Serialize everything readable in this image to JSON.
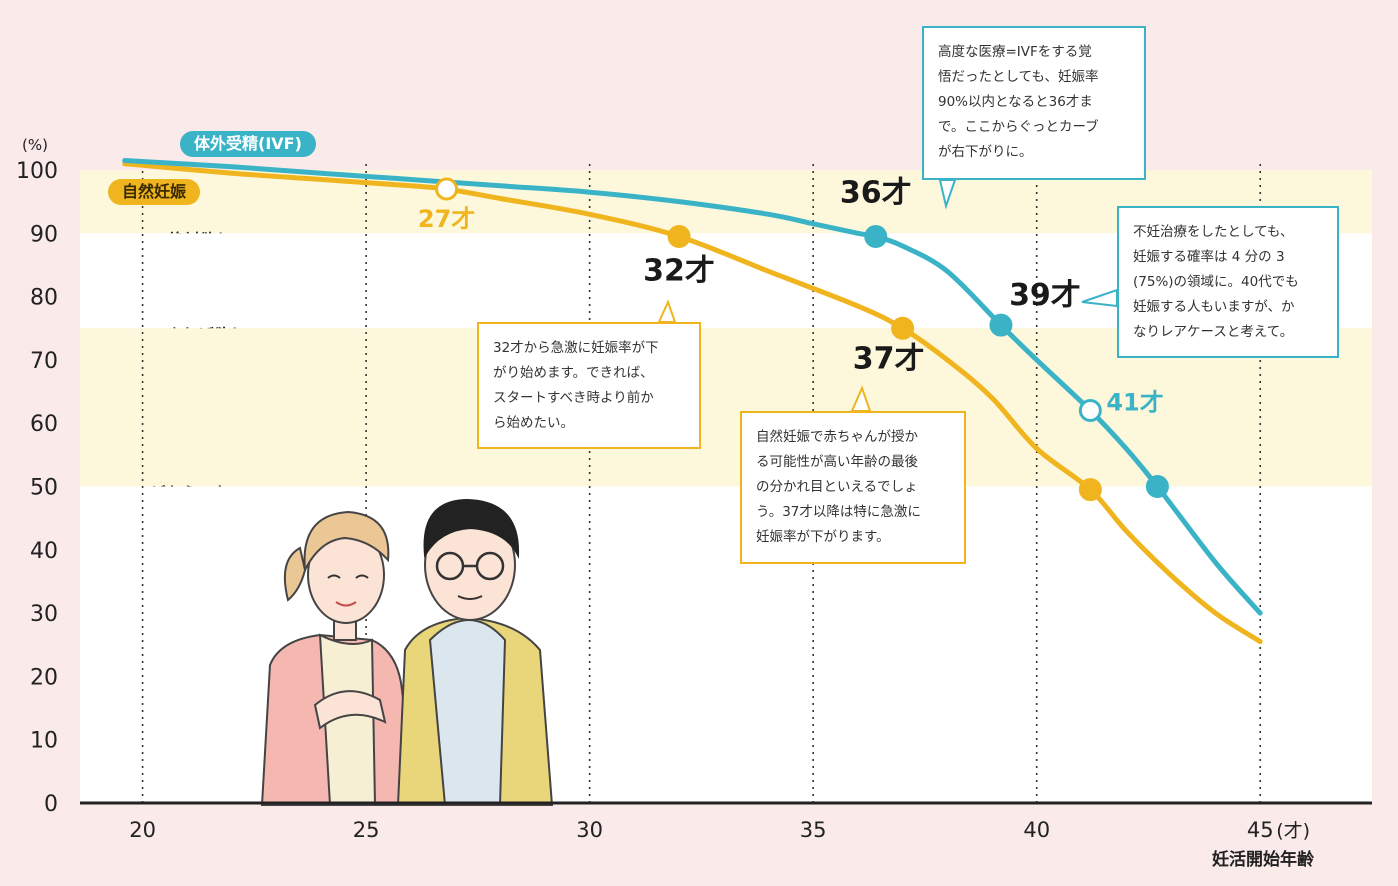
{
  "chart_data": {
    "type": "line",
    "xlabel": "妊活開始年齢",
    "ylabel": "(%)",
    "x_unit_label": "(才)",
    "xlim": [
      18.6,
      47.5
    ],
    "ylim": [
      0,
      100
    ],
    "x_ticks": [
      "20",
      "25",
      "30",
      "35",
      "40",
      "45"
    ],
    "y_ticks": [
      "0",
      "10",
      "20",
      "30",
      "40",
      "50",
      "60",
      "70",
      "80",
      "90",
      "100"
    ],
    "grid": "vertical-dotted",
    "series": [
      {
        "name": "体外受精(IVF)",
        "color": "#3bb3c7",
        "x": [
          19.6,
          22,
          24,
          26,
          28,
          30,
          32,
          34,
          35,
          36,
          36.4,
          37,
          38,
          39.2,
          40,
          41.2,
          42,
          42.7,
          44,
          45
        ],
        "y": [
          101.5,
          100.5,
          99.5,
          98.5,
          97.5,
          96.5,
          95,
          93,
          91.5,
          90,
          89.5,
          88,
          84,
          75.5,
          70,
          62,
          56,
          50,
          38,
          30
        ]
      },
      {
        "name": "自然妊娠",
        "color": "#f0b51e",
        "x": [
          19.6,
          22,
          24,
          26,
          26.8,
          28,
          30,
          32,
          34,
          36,
          37,
          38,
          39,
          40,
          41.2,
          42,
          43,
          44,
          45
        ],
        "y": [
          101,
          99.5,
          98.5,
          97.5,
          97,
          95.5,
          93,
          89.5,
          84,
          78.5,
          75,
          70,
          64,
          56,
          49.5,
          43,
          36,
          30,
          25.5
        ]
      }
    ],
    "markers": [
      {
        "series": 0,
        "x": 36.4,
        "y": 89.5,
        "label": "36才",
        "filled": true
      },
      {
        "series": 0,
        "x": 39.2,
        "y": 75.5,
        "label": "39才",
        "filled": true
      },
      {
        "series": 0,
        "x": 41.2,
        "y": 62,
        "label": "41才",
        "filled": false
      },
      {
        "series": 0,
        "x": 42.7,
        "y": 50,
        "label": "",
        "filled": true
      },
      {
        "series": 1,
        "x": 26.8,
        "y": 97,
        "label": "27才",
        "filled": false
      },
      {
        "series": 1,
        "x": 32,
        "y": 89.5,
        "label": "32才",
        "filled": true
      },
      {
        "series": 1,
        "x": 37,
        "y": 75,
        "label": "37才",
        "filled": true
      },
      {
        "series": 1,
        "x": 41.2,
        "y": 49.5,
        "label": "",
        "filled": true
      }
    ],
    "bands": [
      {
        "y0": 90,
        "y1": 100,
        "label": "絶対欲しい"
      },
      {
        "y0": 75,
        "y1": 90,
        "label": "できれば欲しい"
      },
      {
        "y0": 50,
        "y1": 75,
        "label": "どちらでもいい"
      }
    ],
    "callouts": [
      {
        "color": "blue",
        "text": "高度な医療=IVFをする覚\n悟だったとしても、妊娠率\n90%以内となると36才ま\nで。ここからぐっとカーブ\nが右下がりに。"
      },
      {
        "color": "blue",
        "text": "不妊治療をしたとしても、\n妊娠する確率は 4 分の 3\n(75%)の領域に。40代でも\n妊娠する人もいますが、か\nなりレアケースと考えて。"
      },
      {
        "color": "yellow",
        "text": "32才から急激に妊娠率が下\nがり始めます。できれば、\nスタートすべき時より前か\nら始めたい。"
      },
      {
        "color": "yellow",
        "text": "自然妊娠で赤ちゃんが授か\nる可能性が高い年齢の最後\nの分かれ目といえるでしょ\nう。37才以降は特に急激に\n妊娠率が下がります。"
      }
    ],
    "colors": {
      "background": "#fbeaea",
      "band": "#fdf8dc",
      "ivf": "#3bb3c7",
      "natural": "#f0b51e",
      "axis": "#222222"
    }
  }
}
